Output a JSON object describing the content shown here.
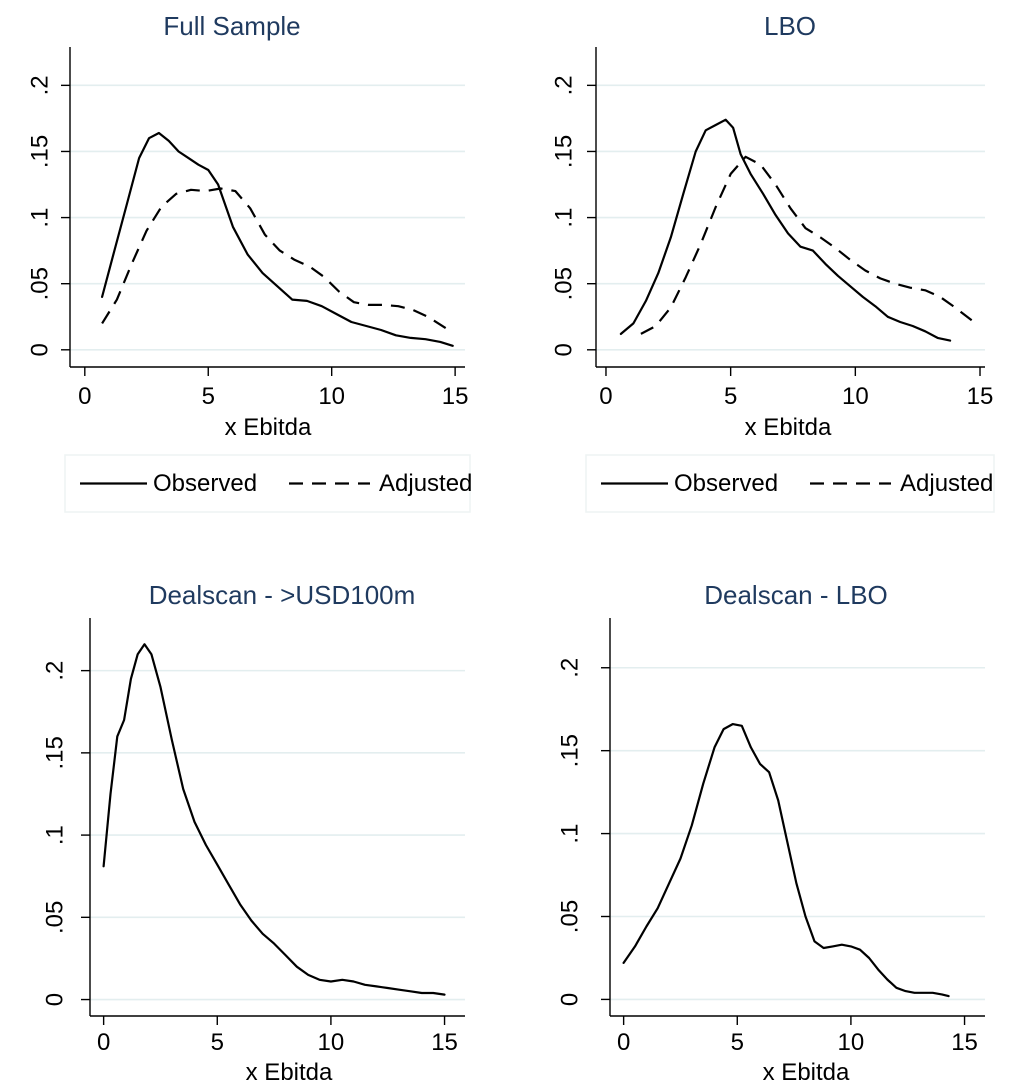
{
  "chart_data": [
    {
      "type": "line",
      "title": "Full Sample",
      "xlabel": "x Ebitda",
      "ylabel": "",
      "xlim": [
        0,
        15
      ],
      "ylim": [
        0,
        0.2
      ],
      "xticks": [
        0,
        5,
        10,
        15
      ],
      "xtick_labels": [
        "0",
        "5",
        "10",
        "15"
      ],
      "yticks": [
        0,
        0.05,
        0.1,
        0.15,
        0.2
      ],
      "ytick_labels": [
        "0",
        ".05",
        ".1",
        ".15",
        ".2"
      ],
      "grid": "horizontal",
      "legend": "bottom",
      "series": [
        {
          "name": "Observed",
          "style": "solid",
          "x": [
            0.7,
            1.2,
            1.7,
            2.2,
            2.6,
            3.0,
            3.4,
            3.8,
            4.2,
            4.6,
            5.0,
            5.4,
            6.0,
            6.6,
            7.2,
            7.8,
            8.4,
            9.0,
            9.6,
            10.2,
            10.8,
            11.4,
            12.0,
            12.6,
            13.2,
            13.8,
            14.4,
            14.9
          ],
          "y": [
            0.04,
            0.075,
            0.11,
            0.145,
            0.16,
            0.164,
            0.158,
            0.15,
            0.145,
            0.14,
            0.136,
            0.125,
            0.093,
            0.072,
            0.058,
            0.048,
            0.038,
            0.037,
            0.033,
            0.027,
            0.021,
            0.018,
            0.015,
            0.011,
            0.009,
            0.008,
            0.006,
            0.003
          ]
        },
        {
          "name": "Adjusted",
          "style": "dashed",
          "x": [
            0.7,
            1.3,
            1.9,
            2.5,
            3.1,
            3.7,
            4.3,
            4.9,
            5.5,
            6.1,
            6.7,
            7.3,
            7.9,
            8.5,
            9.1,
            9.7,
            10.3,
            10.9,
            11.5,
            12.1,
            12.7,
            13.3,
            13.9,
            14.9
          ],
          "y": [
            0.02,
            0.038,
            0.065,
            0.09,
            0.108,
            0.118,
            0.121,
            0.12,
            0.122,
            0.12,
            0.107,
            0.087,
            0.075,
            0.068,
            0.063,
            0.055,
            0.044,
            0.036,
            0.034,
            0.034,
            0.033,
            0.03,
            0.025,
            0.013
          ]
        }
      ]
    },
    {
      "type": "line",
      "title": "LBO",
      "xlabel": "x Ebitda",
      "ylabel": "",
      "xlim": [
        0,
        15
      ],
      "ylim": [
        0,
        0.2
      ],
      "xticks": [
        0,
        5,
        10,
        15
      ],
      "xtick_labels": [
        "0",
        "5",
        "10",
        "15"
      ],
      "yticks": [
        0,
        0.05,
        0.1,
        0.15,
        0.2
      ],
      "ytick_labels": [
        "0",
        ".05",
        ".1",
        ".15",
        ".2"
      ],
      "grid": "horizontal",
      "legend": "bottom",
      "series": [
        {
          "name": "Observed",
          "style": "solid",
          "x": [
            0.6,
            1.1,
            1.6,
            2.1,
            2.6,
            3.1,
            3.6,
            4.0,
            4.4,
            4.8,
            5.1,
            5.4,
            5.8,
            6.3,
            6.8,
            7.3,
            7.8,
            8.3,
            8.8,
            9.3,
            9.8,
            10.3,
            10.8,
            11.3,
            11.8,
            12.3,
            12.8,
            13.3,
            13.8
          ],
          "y": [
            0.012,
            0.02,
            0.037,
            0.058,
            0.085,
            0.118,
            0.15,
            0.166,
            0.17,
            0.174,
            0.168,
            0.148,
            0.133,
            0.118,
            0.102,
            0.088,
            0.078,
            0.075,
            0.065,
            0.056,
            0.048,
            0.04,
            0.033,
            0.025,
            0.021,
            0.018,
            0.014,
            0.009,
            0.007
          ]
        },
        {
          "name": "Adjusted",
          "style": "dashed",
          "x": [
            1.4,
            2.0,
            2.6,
            3.2,
            3.8,
            4.4,
            5.0,
            5.6,
            6.2,
            6.8,
            7.4,
            8.0,
            8.6,
            9.2,
            9.8,
            10.4,
            11.0,
            11.6,
            12.2,
            12.8,
            13.4,
            14.0,
            14.9
          ],
          "y": [
            0.012,
            0.018,
            0.032,
            0.055,
            0.08,
            0.108,
            0.133,
            0.146,
            0.14,
            0.125,
            0.107,
            0.092,
            0.085,
            0.077,
            0.068,
            0.06,
            0.054,
            0.05,
            0.047,
            0.045,
            0.04,
            0.032,
            0.019
          ]
        }
      ]
    },
    {
      "type": "line",
      "title": "Dealscan - >USD100m",
      "xlabel": "x Ebitda",
      "ylabel": "",
      "xlim": [
        0,
        15
      ],
      "ylim": [
        0,
        0.2
      ],
      "xticks": [
        0,
        5,
        10,
        15
      ],
      "xtick_labels": [
        "0",
        "5",
        "10",
        "15"
      ],
      "yticks": [
        0,
        0.05,
        0.1,
        0.15,
        0.2
      ],
      "ytick_labels": [
        "0",
        ".05",
        ".1",
        ".15",
        ".2"
      ],
      "grid": "horizontal",
      "legend": "none",
      "series": [
        {
          "name": "",
          "style": "solid",
          "x": [
            0,
            0.3,
            0.6,
            0.9,
            1.2,
            1.5,
            1.8,
            2.1,
            2.5,
            3.0,
            3.5,
            4.0,
            4.5,
            5.0,
            5.5,
            6.0,
            6.5,
            7.0,
            7.5,
            8.0,
            8.5,
            9.0,
            9.5,
            10.0,
            10.5,
            11.0,
            11.5,
            12.0,
            12.5,
            13.0,
            13.5,
            14.0,
            14.5,
            15.0
          ],
          "y": [
            0.081,
            0.125,
            0.16,
            0.17,
            0.195,
            0.21,
            0.216,
            0.21,
            0.19,
            0.158,
            0.128,
            0.108,
            0.094,
            0.082,
            0.07,
            0.058,
            0.048,
            0.04,
            0.034,
            0.027,
            0.02,
            0.015,
            0.012,
            0.011,
            0.012,
            0.011,
            0.009,
            0.008,
            0.007,
            0.006,
            0.005,
            0.004,
            0.004,
            0.003
          ]
        }
      ]
    },
    {
      "type": "line",
      "title": "Dealscan - LBO",
      "xlabel": "x Ebitda",
      "ylabel": "",
      "xlim": [
        0,
        15
      ],
      "ylim": [
        0,
        0.2
      ],
      "xticks": [
        0,
        5,
        10,
        15
      ],
      "xtick_labels": [
        "0",
        "5",
        "10",
        "15"
      ],
      "yticks": [
        0,
        0.05,
        0.1,
        0.15,
        0.2
      ],
      "ytick_labels": [
        "0",
        ".05",
        ".1",
        ".15",
        ".2"
      ],
      "grid": "horizontal",
      "legend": "none",
      "series": [
        {
          "name": "",
          "style": "solid",
          "x": [
            0,
            0.5,
            1.0,
            1.5,
            2.0,
            2.5,
            3.0,
            3.5,
            4.0,
            4.4,
            4.8,
            5.2,
            5.6,
            6.0,
            6.4,
            6.8,
            7.2,
            7.6,
            8.0,
            8.4,
            8.8,
            9.2,
            9.6,
            10.0,
            10.4,
            10.8,
            11.2,
            11.6,
            12.0,
            12.4,
            12.8,
            13.2,
            13.6,
            14.0,
            14.3
          ],
          "y": [
            0.022,
            0.032,
            0.044,
            0.055,
            0.07,
            0.085,
            0.105,
            0.13,
            0.152,
            0.163,
            0.166,
            0.165,
            0.152,
            0.142,
            0.137,
            0.12,
            0.095,
            0.07,
            0.05,
            0.035,
            0.031,
            0.032,
            0.033,
            0.032,
            0.03,
            0.025,
            0.018,
            0.012,
            0.007,
            0.005,
            0.004,
            0.004,
            0.004,
            0.003,
            0.002
          ]
        }
      ]
    }
  ]
}
